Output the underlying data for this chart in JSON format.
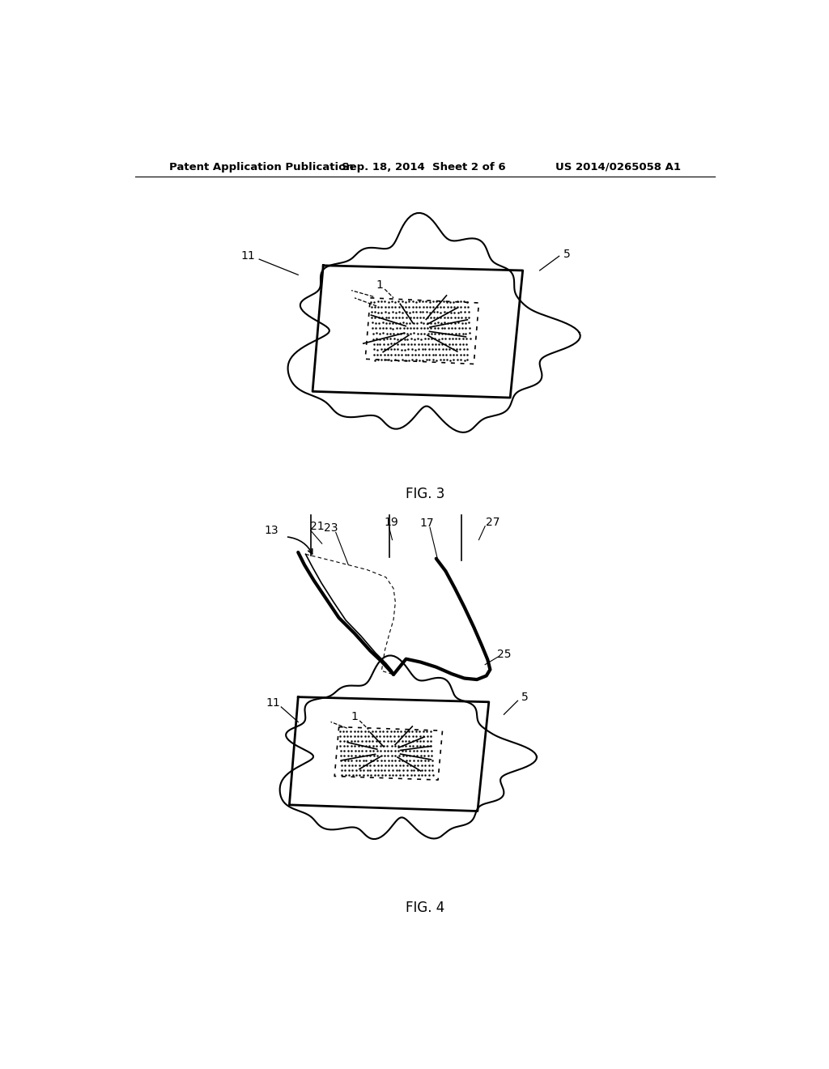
{
  "bg_color": "#ffffff",
  "header_left": "Patent Application Publication",
  "header_mid": "Sep. 18, 2014  Sheet 2 of 6",
  "header_right": "US 2014/0265058 A1",
  "fig3_caption": "FIG. 3",
  "fig4_caption": "FIG. 4",
  "line_color": "#000000"
}
